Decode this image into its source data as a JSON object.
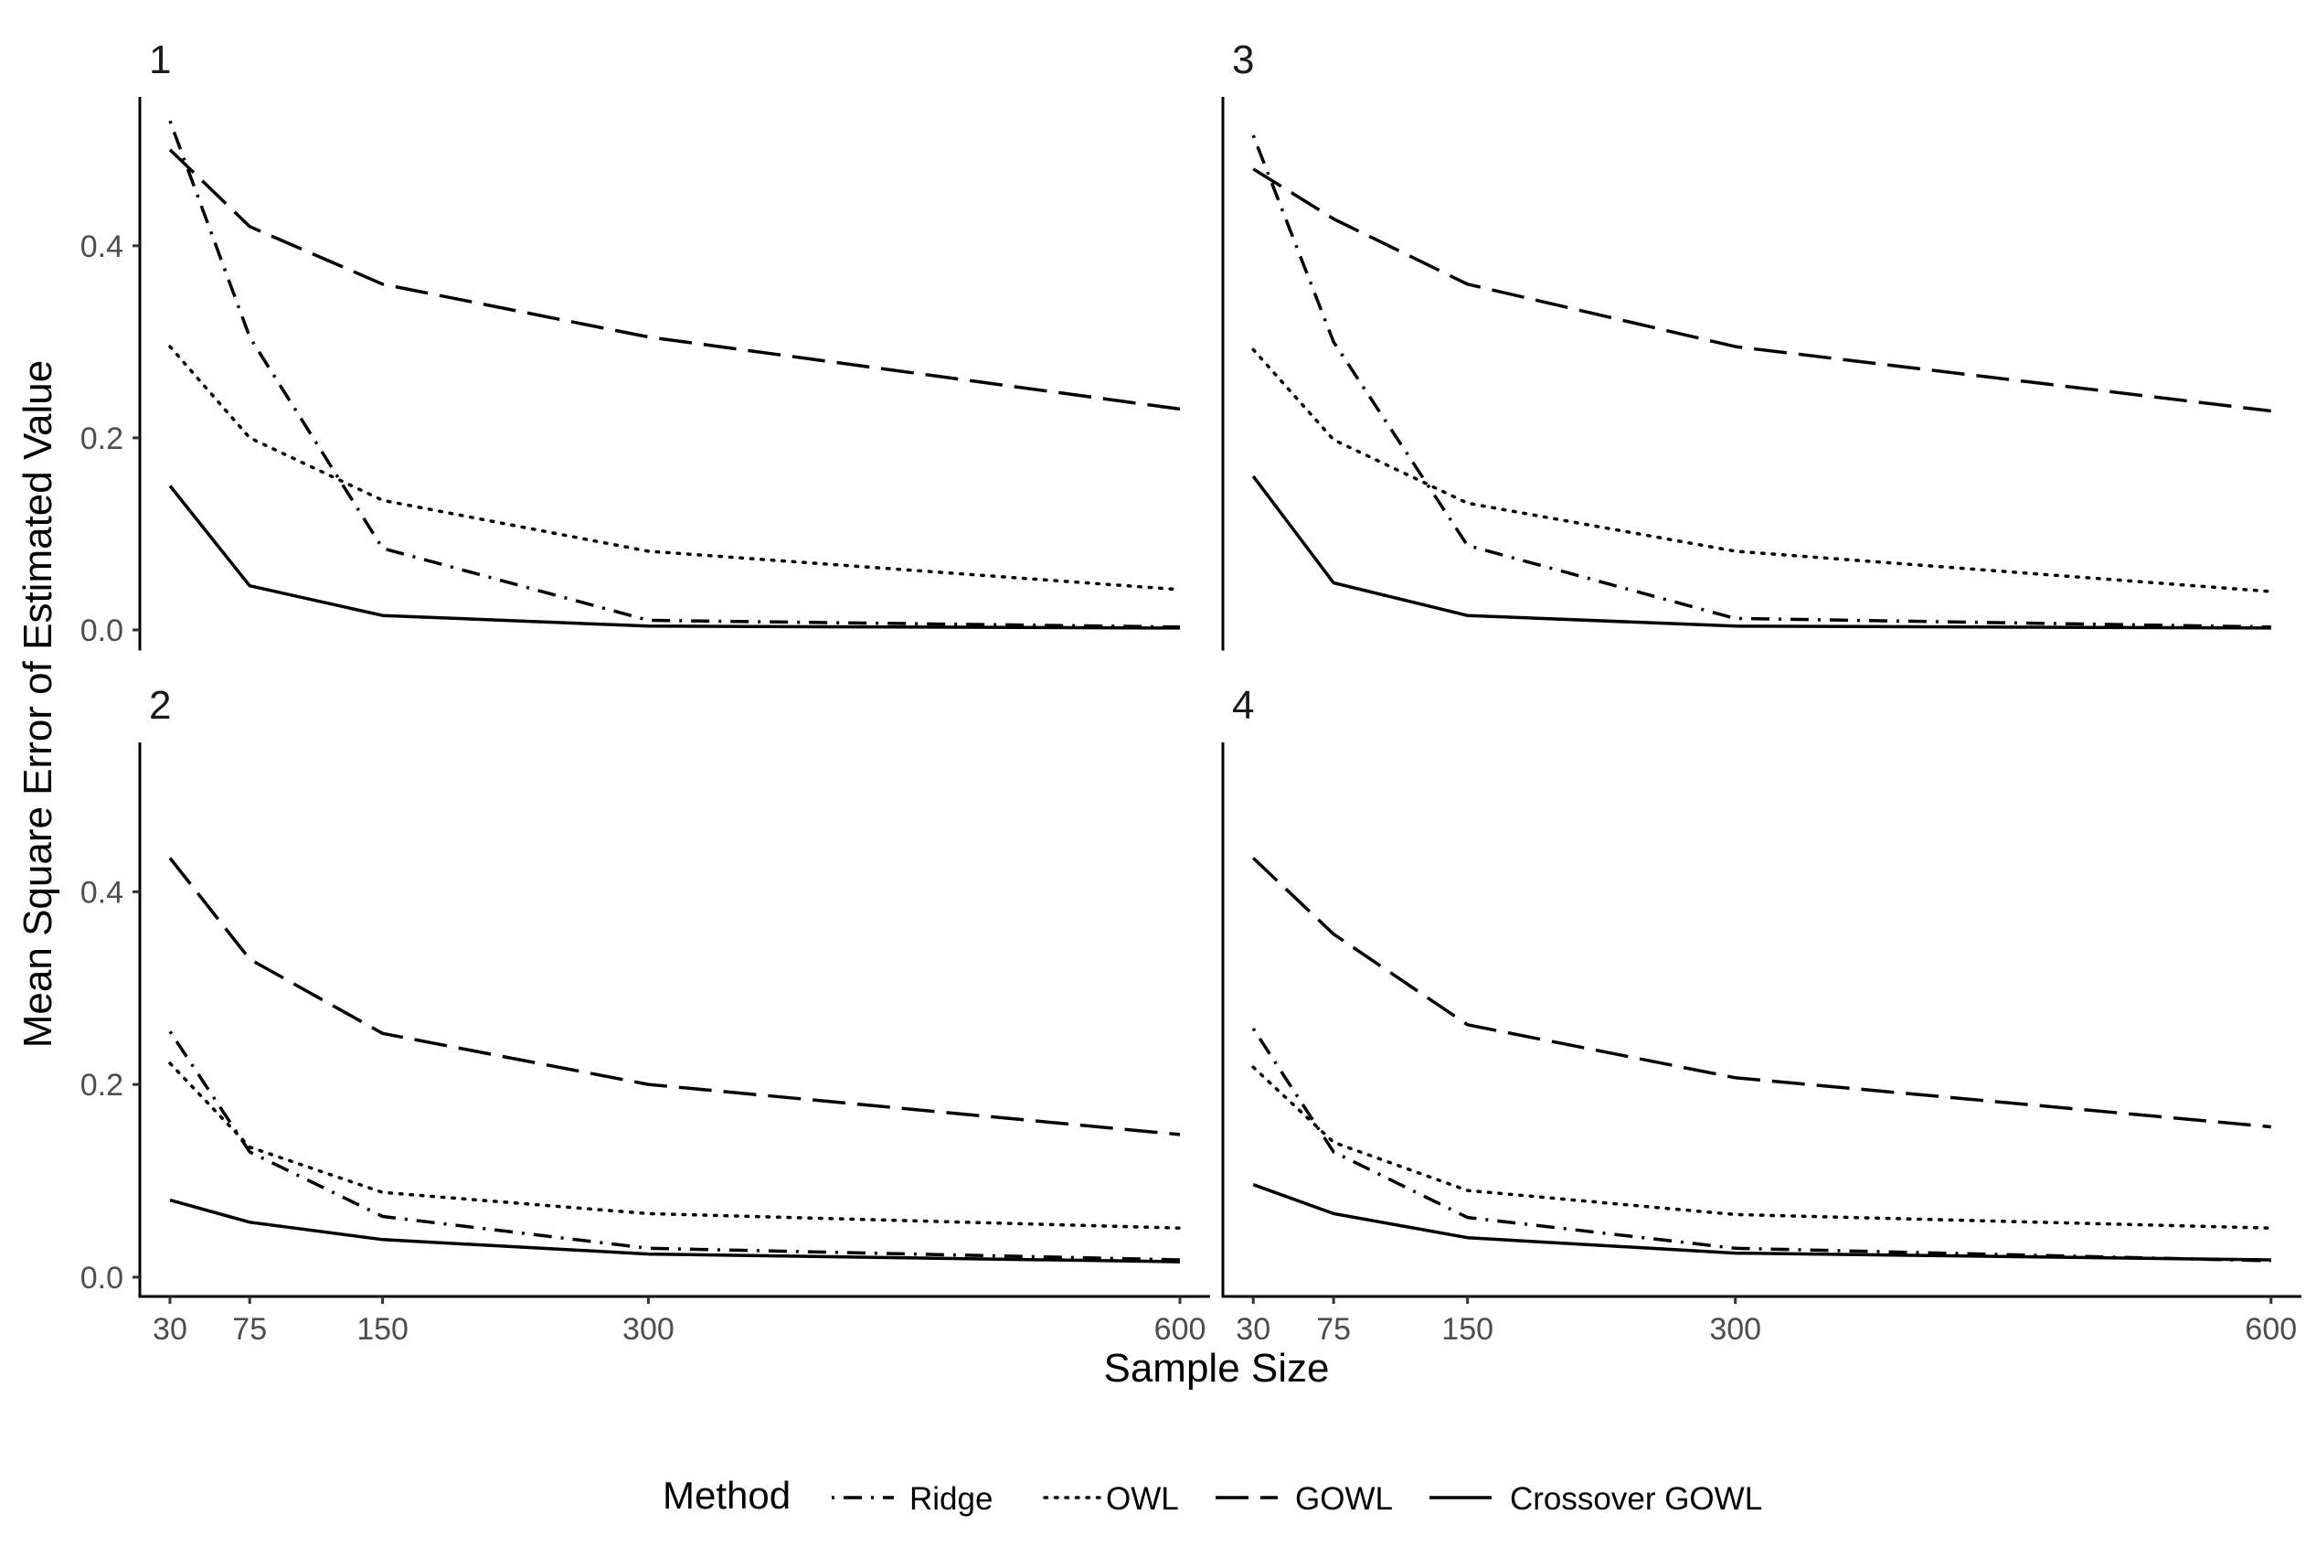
{
  "chart_data": {
    "type": "line",
    "layout": "facet-2x2",
    "xlabel": "Sample Size",
    "ylabel": "Mean Square Error of Estimated Value",
    "x": [
      30,
      75,
      150,
      300,
      600
    ],
    "x_ticks": [
      30,
      75,
      150,
      300,
      600
    ],
    "y_ticks": [
      0.0,
      0.2,
      0.4
    ],
    "y_tick_labels": [
      "0.0",
      "0.2",
      "0.4"
    ],
    "ylim": [
      -0.02,
      0.555
    ],
    "xlim": [
      13,
      617
    ],
    "legend": {
      "title": "Method",
      "position": "bottom",
      "entries": [
        {
          "name": "Ridge",
          "linetype": "dotdash"
        },
        {
          "name": "OWL",
          "linetype": "dotted"
        },
        {
          "name": "GOWL",
          "linetype": "longdash"
        },
        {
          "name": "Crossover GOWL",
          "linetype": "solid"
        }
      ]
    },
    "panels": [
      {
        "label": "1",
        "series": [
          {
            "name": "Ridge",
            "values": [
              0.53,
              0.305,
              0.085,
              0.01,
              0.003
            ]
          },
          {
            "name": "OWL",
            "values": [
              0.295,
              0.2,
              0.135,
              0.082,
              0.042
            ]
          },
          {
            "name": "GOWL",
            "values": [
              0.5,
              0.42,
              0.36,
              0.305,
              0.23
            ]
          },
          {
            "name": "Crossover GOWL",
            "values": [
              0.15,
              0.046,
              0.015,
              0.004,
              0.002
            ]
          }
        ]
      },
      {
        "label": "3",
        "series": [
          {
            "name": "Ridge",
            "values": [
              0.515,
              0.3,
              0.088,
              0.012,
              0.003
            ]
          },
          {
            "name": "OWL",
            "values": [
              0.292,
              0.198,
              0.132,
              0.082,
              0.04
            ]
          },
          {
            "name": "GOWL",
            "values": [
              0.48,
              0.428,
              0.36,
              0.295,
              0.228
            ]
          },
          {
            "name": "Crossover GOWL",
            "values": [
              0.16,
              0.049,
              0.015,
              0.004,
              0.002
            ]
          }
        ]
      },
      {
        "label": "2",
        "series": [
          {
            "name": "Ridge",
            "values": [
              0.255,
              0.13,
              0.063,
              0.03,
              0.018
            ]
          },
          {
            "name": "OWL",
            "values": [
              0.222,
              0.135,
              0.088,
              0.066,
              0.051
            ]
          },
          {
            "name": "GOWL",
            "values": [
              0.435,
              0.33,
              0.253,
              0.2,
              0.148
            ]
          },
          {
            "name": "Crossover GOWL",
            "values": [
              0.08,
              0.057,
              0.039,
              0.024,
              0.016
            ]
          }
        ]
      },
      {
        "label": "4",
        "series": [
          {
            "name": "Ridge",
            "values": [
              0.258,
              0.13,
              0.062,
              0.03,
              0.017
            ]
          },
          {
            "name": "OWL",
            "values": [
              0.218,
              0.14,
              0.09,
              0.065,
              0.051
            ]
          },
          {
            "name": "GOWL",
            "values": [
              0.435,
              0.356,
              0.262,
              0.207,
              0.156
            ]
          },
          {
            "name": "Crossover GOWL",
            "values": [
              0.096,
              0.066,
              0.041,
              0.025,
              0.018
            ]
          }
        ]
      }
    ]
  }
}
